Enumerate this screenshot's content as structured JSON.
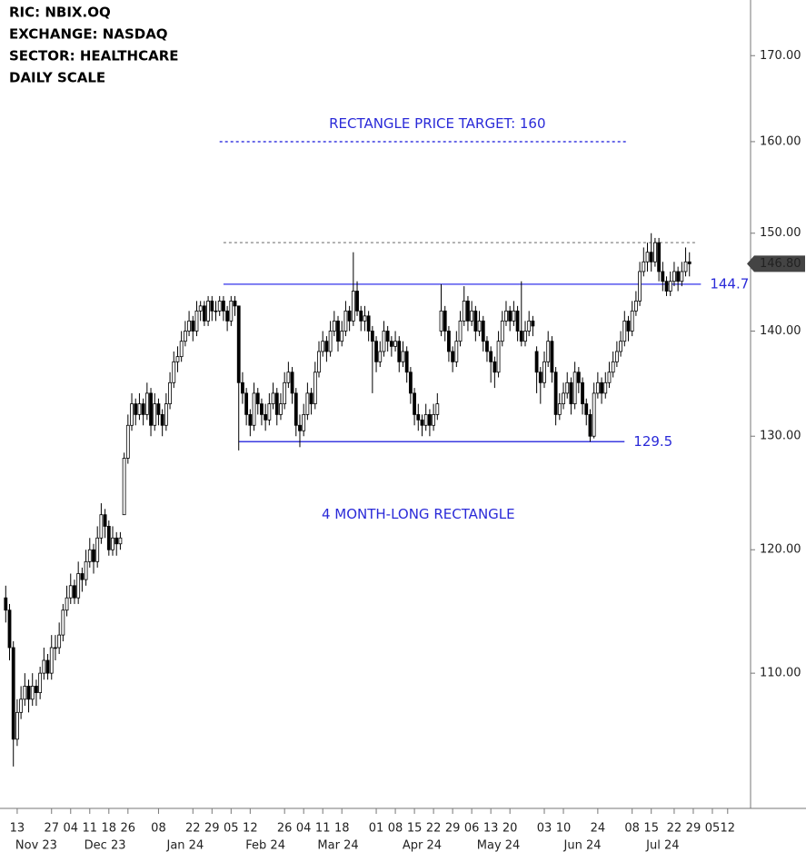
{
  "chart_data": {
    "type": "candlestick",
    "header_lines": [
      "RIC:  NBIX.OQ",
      "EXCHANGE: NASDAQ",
      "SECTOR:  HEALTHCARE",
      "DAILY SCALE"
    ],
    "annotations": [
      {
        "text": "RECTANGLE PRICE TARGET: 160",
        "x": 113,
        "y": 162
      },
      {
        "text": "4 MONTH-LONG RECTANGLE",
        "x": 108,
        "y": 123
      }
    ],
    "log_scale": true,
    "ylim": [
      100,
      176.8
    ],
    "yticks": [
      {
        "value": 110,
        "label": "110.00"
      },
      {
        "value": 120,
        "label": "120.00"
      },
      {
        "value": 130,
        "label": "130.00"
      },
      {
        "value": 140,
        "label": "140.00"
      },
      {
        "value": 150,
        "label": "150.00"
      },
      {
        "value": 160,
        "label": "160.00"
      },
      {
        "value": 170,
        "label": "170.00"
      }
    ],
    "xlim": [
      -1.5,
      195
    ],
    "xticks": [
      {
        "value": 3,
        "label": "13"
      },
      {
        "value": 12,
        "label": "27"
      },
      {
        "value": 17,
        "label": "04"
      },
      {
        "value": 22,
        "label": "11"
      },
      {
        "value": 27,
        "label": "18"
      },
      {
        "value": 32,
        "label": "26"
      },
      {
        "value": 40,
        "label": "08"
      },
      {
        "value": 49,
        "label": "22"
      },
      {
        "value": 54,
        "label": "29"
      },
      {
        "value": 59,
        "label": "05"
      },
      {
        "value": 64,
        "label": "12"
      },
      {
        "value": 73,
        "label": "26"
      },
      {
        "value": 78,
        "label": "04"
      },
      {
        "value": 83,
        "label": "11"
      },
      {
        "value": 88,
        "label": "18"
      },
      {
        "value": 97,
        "label": "01"
      },
      {
        "value": 102,
        "label": "08"
      },
      {
        "value": 107,
        "label": "15"
      },
      {
        "value": 112,
        "label": "22"
      },
      {
        "value": 117,
        "label": "29"
      },
      {
        "value": 122,
        "label": "06"
      },
      {
        "value": 127,
        "label": "13"
      },
      {
        "value": 132,
        "label": "20"
      },
      {
        "value": 141,
        "label": "03"
      },
      {
        "value": 146,
        "label": "10"
      },
      {
        "value": 155,
        "label": "24"
      },
      {
        "value": 164,
        "label": "08"
      },
      {
        "value": 169,
        "label": "15"
      },
      {
        "value": 175,
        "label": "22"
      },
      {
        "value": 180,
        "label": "29"
      },
      {
        "value": 185,
        "label": "05"
      },
      {
        "value": 189,
        "label": "12"
      }
    ],
    "month_labels": [
      {
        "value": 8,
        "label": "Nov 23"
      },
      {
        "value": 26,
        "label": "Dec 23"
      },
      {
        "value": 47,
        "label": "Jan 24"
      },
      {
        "value": 68,
        "label": "Feb 24"
      },
      {
        "value": 87,
        "label": "Mar 24"
      },
      {
        "value": 109,
        "label": "Apr 24"
      },
      {
        "value": 129,
        "label": "May 24"
      },
      {
        "value": 151,
        "label": "Jun 24"
      },
      {
        "value": 172,
        "label": "Jul 24"
      }
    ],
    "levels": [
      {
        "value": 160,
        "from": 56,
        "to": 163,
        "color": "#3a3ae0",
        "dashed": true,
        "show_value": false
      },
      {
        "value": 149,
        "from": 57,
        "to": 181,
        "color": "#999999",
        "dashed": true,
        "show_value": false
      },
      {
        "value": 144.7,
        "from": 57,
        "to": 182,
        "color": "#5555ee",
        "dashed": false,
        "show_value": true
      },
      {
        "value": 129.5,
        "from": 61,
        "to": 162,
        "color": "#3a3ae0",
        "dashed": false,
        "show_value": true
      }
    ],
    "last_price": {
      "value": 146.8,
      "label": "146.80"
    },
    "ohlc": [
      [
        116,
        117,
        114,
        115
      ],
      [
        115,
        115.5,
        111,
        112
      ],
      [
        112,
        112.5,
        103,
        105
      ],
      [
        105,
        108,
        104.5,
        107
      ],
      [
        107,
        109,
        106.5,
        108
      ],
      [
        108,
        110,
        107.5,
        109
      ],
      [
        109,
        109.5,
        107,
        108
      ],
      [
        108,
        110,
        107.5,
        109
      ],
      [
        109,
        109.5,
        107.5,
        108.5
      ],
      [
        108.5,
        110.5,
        108,
        110
      ],
      [
        110,
        112,
        109.5,
        111
      ],
      [
        111,
        111.5,
        109.5,
        110
      ],
      [
        110,
        113,
        109.5,
        112
      ],
      [
        112,
        113,
        111,
        112
      ],
      [
        112,
        114,
        111.5,
        113
      ],
      [
        113,
        115.5,
        112.5,
        115
      ],
      [
        115,
        117,
        114.5,
        116
      ],
      [
        116,
        118,
        115.5,
        117
      ],
      [
        117,
        117.5,
        115.5,
        116
      ],
      [
        116,
        119,
        115.5,
        118
      ],
      [
        118,
        118.5,
        116.5,
        117.5
      ],
      [
        117.5,
        120,
        117,
        119
      ],
      [
        119,
        121,
        118.5,
        120
      ],
      [
        120,
        120.5,
        118,
        119
      ],
      [
        119,
        122,
        118.5,
        121
      ],
      [
        121,
        124,
        120.5,
        123
      ],
      [
        123,
        123.5,
        121,
        122
      ],
      [
        122,
        122.5,
        119.5,
        120
      ],
      [
        120,
        122,
        119.5,
        121
      ],
      [
        121,
        121.5,
        119.5,
        120.5
      ],
      [
        120.5,
        121.5,
        120,
        121
      ],
      [
        123,
        128.5,
        123,
        128
      ],
      [
        128,
        132,
        127.5,
        131
      ],
      [
        131,
        134,
        130.5,
        133
      ],
      [
        133,
        133.5,
        131,
        132
      ],
      [
        132,
        134,
        131.5,
        133
      ],
      [
        133,
        133.5,
        131,
        132
      ],
      [
        132,
        135,
        131.5,
        134
      ],
      [
        134,
        134.5,
        130,
        131
      ],
      [
        131,
        134,
        130.5,
        133
      ],
      [
        133,
        133.5,
        131,
        132
      ],
      [
        132,
        132.5,
        130,
        131
      ],
      [
        131,
        134,
        130.5,
        133
      ],
      [
        133,
        136,
        132.5,
        135
      ],
      [
        135,
        138,
        134.5,
        137
      ],
      [
        137,
        138.5,
        136,
        137.5
      ],
      [
        137.5,
        140,
        137,
        139
      ],
      [
        139,
        141,
        138.5,
        140
      ],
      [
        140,
        142,
        139.5,
        141
      ],
      [
        141,
        141.5,
        139,
        140
      ],
      [
        140,
        143,
        139.5,
        142
      ],
      [
        142,
        143,
        141,
        142.5
      ],
      [
        142.5,
        143,
        140.5,
        141
      ],
      [
        141,
        143.5,
        140.5,
        143
      ],
      [
        143,
        143.5,
        141,
        142
      ],
      [
        142,
        143,
        141,
        142
      ],
      [
        142,
        143.5,
        141.5,
        143
      ],
      [
        143,
        143.5,
        141,
        142
      ],
      [
        142,
        142.5,
        140,
        141
      ],
      [
        141,
        143.5,
        140.5,
        143
      ],
      [
        143,
        143.5,
        141.5,
        142.5
      ],
      [
        142.5,
        142.5,
        128.7,
        135
      ],
      [
        135,
        136,
        133,
        134
      ],
      [
        134,
        134.5,
        131,
        132
      ],
      [
        132,
        132.5,
        130,
        131
      ],
      [
        131,
        135,
        130.5,
        134
      ],
      [
        134,
        134.5,
        132,
        133
      ],
      [
        133,
        133.5,
        131,
        132
      ],
      [
        132,
        133,
        130.5,
        131.5
      ],
      [
        131.5,
        134,
        131,
        133
      ],
      [
        133,
        135,
        132.5,
        134
      ],
      [
        134,
        134.5,
        131,
        132
      ],
      [
        132,
        134,
        131.5,
        133
      ],
      [
        133,
        136,
        132.5,
        135
      ],
      [
        135,
        137,
        134.5,
        136
      ],
      [
        136,
        136.5,
        133,
        134
      ],
      [
        134,
        134.5,
        130,
        131
      ],
      [
        131,
        132,
        129,
        130.5
      ],
      [
        130.5,
        133,
        130,
        132
      ],
      [
        132,
        135,
        131.5,
        134
      ],
      [
        134,
        134.5,
        132,
        133
      ],
      [
        133,
        137,
        132.5,
        136
      ],
      [
        136,
        139,
        135.5,
        138
      ],
      [
        138,
        140,
        137.5,
        139
      ],
      [
        139,
        139.5,
        137,
        138
      ],
      [
        138,
        141,
        137.5,
        140
      ],
      [
        140,
        142,
        139.5,
        141
      ],
      [
        141,
        141.5,
        138,
        139
      ],
      [
        139,
        141,
        138.5,
        140
      ],
      [
        140,
        143,
        139.5,
        142
      ],
      [
        142,
        142.5,
        140,
        141
      ],
      [
        141,
        148,
        140.5,
        144
      ],
      [
        144,
        145,
        141.5,
        142
      ],
      [
        142,
        142.5,
        140,
        141
      ],
      [
        141,
        142.5,
        140,
        141.5
      ],
      [
        141.5,
        142,
        139,
        140
      ],
      [
        140,
        140.5,
        134,
        139
      ],
      [
        139,
        139.5,
        136,
        137
      ],
      [
        137,
        139,
        136.5,
        138
      ],
      [
        138,
        141,
        137.5,
        140
      ],
      [
        140,
        140.5,
        138,
        139
      ],
      [
        139,
        139.5,
        137.5,
        138.5
      ],
      [
        138.5,
        140,
        138,
        139
      ],
      [
        139,
        139.5,
        136,
        137
      ],
      [
        137,
        139,
        136.5,
        138
      ],
      [
        138,
        138.5,
        135,
        136
      ],
      [
        136,
        136.5,
        133,
        134
      ],
      [
        134,
        134.5,
        131,
        132
      ],
      [
        132,
        133,
        130.5,
        131.5
      ],
      [
        131.5,
        132,
        130,
        131
      ],
      [
        131,
        133,
        130.5,
        132
      ],
      [
        132,
        132.5,
        130,
        131
      ],
      [
        131,
        133,
        130.5,
        132
      ],
      [
        132,
        134,
        131.5,
        133
      ],
      [
        140,
        144.7,
        139.5,
        142
      ],
      [
        142,
        142.5,
        139,
        140
      ],
      [
        140,
        140.5,
        137,
        138
      ],
      [
        138,
        138.5,
        136,
        137
      ],
      [
        137,
        140,
        136.5,
        139
      ],
      [
        139,
        142,
        138.5,
        141
      ],
      [
        141,
        144.5,
        140.5,
        143
      ],
      [
        143,
        143.5,
        140,
        141
      ],
      [
        141,
        143,
        140.5,
        142
      ],
      [
        142,
        142.5,
        139,
        140
      ],
      [
        140,
        142,
        139.5,
        141
      ],
      [
        141,
        141.5,
        138,
        139
      ],
      [
        139,
        139.5,
        137,
        138
      ],
      [
        138,
        138.5,
        135,
        137
      ],
      [
        137,
        137.5,
        134.5,
        136
      ],
      [
        136,
        140,
        135.5,
        139
      ],
      [
        139,
        142,
        138.5,
        141
      ],
      [
        141,
        143,
        140.5,
        142
      ],
      [
        142,
        142.5,
        140,
        141
      ],
      [
        141,
        143,
        140.5,
        142
      ],
      [
        142,
        142.5,
        139,
        140
      ],
      [
        140,
        145,
        138.5,
        139
      ],
      [
        139,
        141,
        138.5,
        140
      ],
      [
        140,
        142,
        139.5,
        141
      ],
      [
        141,
        141.5,
        139.5,
        140.5
      ],
      [
        138,
        138.5,
        134,
        136
      ],
      [
        136,
        136.5,
        133,
        135
      ],
      [
        135,
        138,
        134.5,
        137
      ],
      [
        137,
        140,
        136.5,
        139
      ],
      [
        139,
        139.5,
        135,
        136
      ],
      [
        136,
        136.5,
        131,
        132
      ],
      [
        132,
        134,
        131.5,
        133
      ],
      [
        133,
        135,
        132.5,
        134
      ],
      [
        134,
        136,
        133.5,
        135
      ],
      [
        135,
        135.5,
        132,
        133
      ],
      [
        133,
        137,
        132.5,
        136
      ],
      [
        136,
        136.5,
        134,
        135
      ],
      [
        135,
        135.5,
        132,
        133
      ],
      [
        133,
        133.5,
        131,
        132
      ],
      [
        132,
        132.5,
        129.5,
        130
      ],
      [
        130,
        135,
        129.8,
        134
      ],
      [
        134,
        136,
        133.5,
        135
      ],
      [
        135,
        135.5,
        133,
        134
      ],
      [
        134,
        136,
        133.5,
        135
      ],
      [
        135,
        137,
        134.5,
        136
      ],
      [
        136,
        138,
        135.5,
        137
      ],
      [
        137,
        139,
        136.5,
        138
      ],
      [
        138,
        140,
        137.5,
        139
      ],
      [
        139,
        142,
        138.5,
        141
      ],
      [
        141,
        141.5,
        139,
        140
      ],
      [
        140,
        143,
        139.5,
        142
      ],
      [
        142,
        144,
        141.5,
        143
      ],
      [
        143,
        147,
        142.5,
        146
      ],
      [
        146,
        148.5,
        145.5,
        147
      ],
      [
        147,
        149,
        146,
        148
      ],
      [
        148,
        150,
        146,
        147
      ],
      [
        147,
        149.5,
        146.5,
        149
      ],
      [
        149,
        149.5,
        145,
        146
      ],
      [
        146,
        147,
        144,
        145
      ],
      [
        145,
        145.5,
        143.5,
        144
      ],
      [
        144,
        146,
        143.5,
        145
      ],
      [
        145,
        147,
        144.5,
        146
      ],
      [
        146,
        146.5,
        144,
        145
      ],
      [
        145,
        147,
        144.5,
        146
      ],
      [
        146,
        148.5,
        145.5,
        147
      ],
      [
        147,
        148,
        145.5,
        146.8
      ]
    ]
  }
}
